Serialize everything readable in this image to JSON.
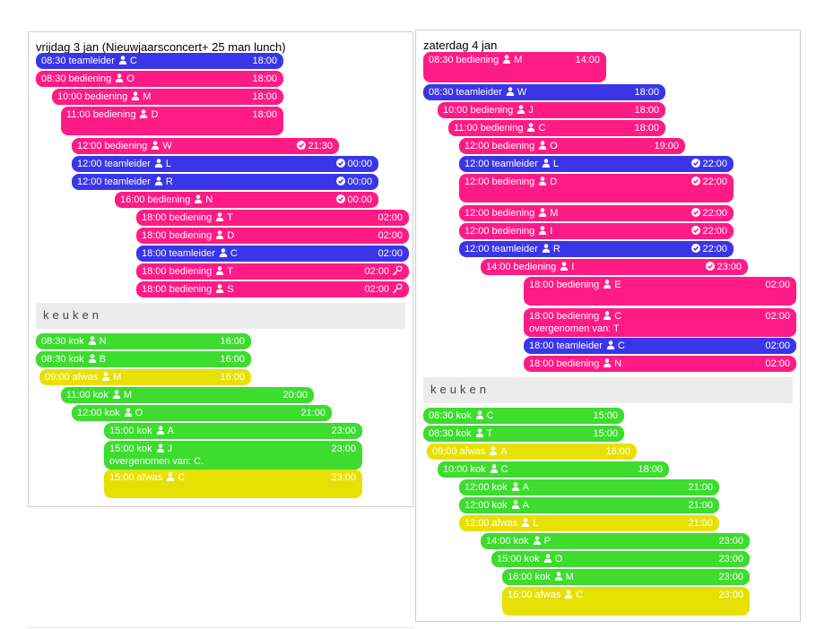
{
  "days": [
    {
      "title": "vrijdag 3 jan (Nieuwjaarsconcert+ 25 man lunch)",
      "shifts": [
        {
          "start": "08:30",
          "role": "teamleider",
          "name": "C",
          "end": "18:00",
          "status": null,
          "key": false,
          "color": "blue"
        },
        {
          "start": "08:30",
          "role": "bediening",
          "name": "O",
          "end": "18:00",
          "status": null,
          "key": false,
          "color": "pink"
        },
        {
          "start": "10:00",
          "role": "bediening",
          "name": "M",
          "end": "18:00",
          "status": null,
          "key": false,
          "color": "pink"
        },
        {
          "start": "11:00",
          "role": "bediening",
          "name": "D",
          "end": "18:00",
          "status": null,
          "key": false,
          "color": "pink"
        },
        {
          "start": "12:00",
          "role": "bediening",
          "name": "W",
          "end": "21:30",
          "status": "check",
          "key": false,
          "color": "pink"
        },
        {
          "start": "12:00",
          "role": "teamleider",
          "name": "L",
          "end": "00:00",
          "status": "check",
          "key": false,
          "color": "blue"
        },
        {
          "start": "12:00",
          "role": "teamleider",
          "name": "R",
          "end": "00:00",
          "status": "check",
          "key": false,
          "color": "blue"
        },
        {
          "start": "16:00",
          "role": "bediening",
          "name": "N",
          "end": "00:00",
          "status": "check",
          "key": false,
          "color": "pink"
        },
        {
          "start": "18:00",
          "role": "bediening",
          "name": "T",
          "end": "02:00",
          "status": null,
          "key": false,
          "color": "pink"
        },
        {
          "start": "18:00",
          "role": "bediening",
          "name": "D",
          "end": "02:00",
          "status": null,
          "key": false,
          "color": "pink"
        },
        {
          "start": "18:00",
          "role": "teamleider",
          "name": "C",
          "end": "02:00",
          "status": null,
          "key": false,
          "color": "blue"
        },
        {
          "start": "18:00",
          "role": "bediening",
          "name": "T",
          "end": "02:00",
          "status": null,
          "key": true,
          "color": "pink"
        },
        {
          "start": "18:00",
          "role": "bediening",
          "name": "S",
          "end": "02:00",
          "status": null,
          "key": true,
          "color": "pink"
        }
      ],
      "kitchen_label": "keuken",
      "kitchen": [
        {
          "start": "08:30",
          "role": "kok",
          "name": "N",
          "end": "16:00",
          "transfer": null,
          "color": "green"
        },
        {
          "start": "08:30",
          "role": "kok",
          "name": "B",
          "end": "16:00",
          "transfer": null,
          "color": "green"
        },
        {
          "start": "09:00",
          "role": "afwas",
          "name": "M",
          "end": "16:00",
          "transfer": null,
          "color": "yellow"
        },
        {
          "start": "11:00",
          "role": "kok",
          "name": "M",
          "end": "20:00",
          "transfer": null,
          "color": "green"
        },
        {
          "start": "12:00",
          "role": "kok",
          "name": "O",
          "end": "21:00",
          "transfer": null,
          "color": "green"
        },
        {
          "start": "15:00",
          "role": "kok",
          "name": "A",
          "end": "23:00",
          "transfer": null,
          "color": "green"
        },
        {
          "start": "15:00",
          "role": "kok",
          "name": "J",
          "end": "23:00",
          "transfer": "overgenomen van: C.",
          "color": "green"
        },
        {
          "start": "15:00",
          "role": "afwas",
          "name": "C",
          "end": "23:00",
          "transfer": null,
          "color": "yellow"
        }
      ]
    },
    {
      "title": "zaterdag 4 jan",
      "shifts": [
        {
          "start": "08:30",
          "role": "bediening",
          "name": "M",
          "end": "14:00",
          "status": null,
          "key": false,
          "color": "pink"
        },
        {
          "start": "08:30",
          "role": "teamleider",
          "name": "W",
          "end": "18:00",
          "status": null,
          "key": false,
          "color": "blue"
        },
        {
          "start": "10:00",
          "role": "bediening",
          "name": "J",
          "end": "18:00",
          "status": null,
          "key": false,
          "color": "pink"
        },
        {
          "start": "11:00",
          "role": "bediening",
          "name": "C",
          "end": "18:00",
          "status": null,
          "key": false,
          "color": "pink"
        },
        {
          "start": "12:00",
          "role": "bediening",
          "name": "O",
          "end": "19:00",
          "status": null,
          "key": false,
          "color": "pink"
        },
        {
          "start": "12:00",
          "role": "teamleider",
          "name": "L",
          "end": "22:00",
          "status": "check",
          "key": false,
          "color": "blue"
        },
        {
          "start": "12:00",
          "role": "bediening",
          "name": "D",
          "end": "22:00",
          "status": "check",
          "key": false,
          "color": "pink"
        },
        {
          "start": "12:00",
          "role": "bediening",
          "name": "M",
          "end": "22:00",
          "status": "check",
          "key": false,
          "color": "pink"
        },
        {
          "start": "12:00",
          "role": "bediening",
          "name": "I",
          "end": "22:00",
          "status": "check",
          "key": false,
          "color": "pink"
        },
        {
          "start": "12:00",
          "role": "teamleider",
          "name": "R",
          "end": "22:00",
          "status": "check",
          "key": false,
          "color": "blue"
        },
        {
          "start": "14:00",
          "role": "bediening",
          "name": "I",
          "end": "23:00",
          "status": "check",
          "key": false,
          "color": "pink"
        },
        {
          "start": "18:00",
          "role": "bediening",
          "name": "E",
          "end": "02:00",
          "status": null,
          "key": false,
          "transfer": null,
          "color": "pink"
        },
        {
          "start": "18:00",
          "role": "bediening",
          "name": "C",
          "end": "02:00",
          "status": null,
          "key": false,
          "transfer": "overgenomen van: T",
          "color": "pink"
        },
        {
          "start": "18:00",
          "role": "teamleider",
          "name": "C",
          "end": "02:00",
          "status": null,
          "key": false,
          "color": "blue"
        },
        {
          "start": "18:00",
          "role": "bediening",
          "name": "N",
          "end": "02:00",
          "status": null,
          "key": false,
          "color": "pink"
        }
      ],
      "kitchen_label": "keuken",
      "kitchen": [
        {
          "start": "08:30",
          "role": "kok",
          "name": "C",
          "end": "15:00",
          "transfer": null,
          "color": "green"
        },
        {
          "start": "08:30",
          "role": "kok",
          "name": "T",
          "end": "15:00",
          "transfer": null,
          "color": "green"
        },
        {
          "start": "09:00",
          "role": "afwas",
          "name": "A",
          "end": "16:00",
          "transfer": null,
          "color": "yellow"
        },
        {
          "start": "10:00",
          "role": "kok",
          "name": "C",
          "end": "18:00",
          "transfer": null,
          "color": "green"
        },
        {
          "start": "12:00",
          "role": "kok",
          "name": "A",
          "end": "21:00",
          "transfer": null,
          "color": "green"
        },
        {
          "start": "12:00",
          "role": "kok",
          "name": "A",
          "end": "21:00",
          "transfer": null,
          "color": "green"
        },
        {
          "start": "12:00",
          "role": "afwas",
          "name": "L",
          "end": "21:00",
          "transfer": null,
          "color": "yellow"
        },
        {
          "start": "14:00",
          "role": "kok",
          "name": "P",
          "end": "23:00",
          "transfer": null,
          "color": "green"
        },
        {
          "start": "15:00",
          "role": "kok",
          "name": "O",
          "end": "23:00",
          "transfer": null,
          "color": "green"
        },
        {
          "start": "16:00",
          "role": "kok",
          "name": "M",
          "end": "23:00",
          "transfer": null,
          "color": "green"
        },
        {
          "start": "16:00",
          "role": "afwas",
          "name": "C",
          "end": "23:00",
          "transfer": null,
          "color": "yellow"
        }
      ]
    }
  ],
  "colors": {
    "blue": "#3a36e8",
    "pink": "#ff1b86",
    "green": "#3ddc2f",
    "yellow": "#e7e103"
  },
  "icons": {
    "person": "person-icon",
    "status": "check-circle-icon",
    "key": "key-icon"
  }
}
